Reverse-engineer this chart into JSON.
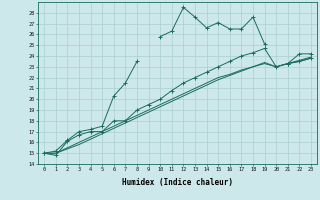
{
  "xlabel": "Humidex (Indice chaleur)",
  "bg_color": "#cce8ea",
  "grid_color": "#aacfd2",
  "line_color": "#1a6b5e",
  "x": [
    0,
    1,
    2,
    3,
    4,
    5,
    6,
    7,
    8,
    9,
    10,
    11,
    12,
    13,
    14,
    15,
    16,
    17,
    18,
    19,
    20,
    21,
    22,
    23
  ],
  "line1": [
    15.0,
    15.2,
    16.2,
    17.0,
    17.2,
    17.5,
    20.3,
    21.5,
    23.5,
    null,
    25.8,
    26.3,
    28.5,
    27.6,
    26.6,
    27.1,
    26.5,
    26.5,
    27.6,
    25.1,
    null,
    23.3,
    24.2,
    24.2
  ],
  "line2": [
    15.0,
    14.8,
    16.1,
    16.7,
    17.0,
    17.0,
    18.0,
    18.0,
    19.0,
    19.5,
    20.0,
    20.8,
    21.5,
    22.0,
    22.5,
    23.0,
    23.5,
    24.0,
    24.3,
    24.7,
    23.0,
    23.3,
    23.5,
    23.8
  ],
  "line3": [
    15.0,
    15.0,
    15.5,
    16.0,
    16.5,
    17.0,
    17.5,
    18.0,
    18.5,
    19.0,
    19.5,
    20.0,
    20.5,
    21.0,
    21.5,
    22.0,
    22.3,
    22.7,
    23.0,
    23.3,
    23.0,
    23.3,
    23.5,
    23.8
  ],
  "line4": [
    15.0,
    15.0,
    15.4,
    15.8,
    16.3,
    16.8,
    17.3,
    17.8,
    18.3,
    18.8,
    19.3,
    19.8,
    20.3,
    20.8,
    21.3,
    21.8,
    22.2,
    22.6,
    23.0,
    23.4,
    23.0,
    23.3,
    23.6,
    23.9
  ],
  "ylim": [
    14,
    29
  ],
  "xlim": [
    -0.5,
    23.5
  ],
  "yticks": [
    14,
    15,
    16,
    17,
    18,
    19,
    20,
    21,
    22,
    23,
    24,
    25,
    26,
    27,
    28
  ],
  "xticks": [
    0,
    1,
    2,
    3,
    4,
    5,
    6,
    7,
    8,
    9,
    10,
    11,
    12,
    13,
    14,
    15,
    16,
    17,
    18,
    19,
    20,
    21,
    22,
    23
  ]
}
